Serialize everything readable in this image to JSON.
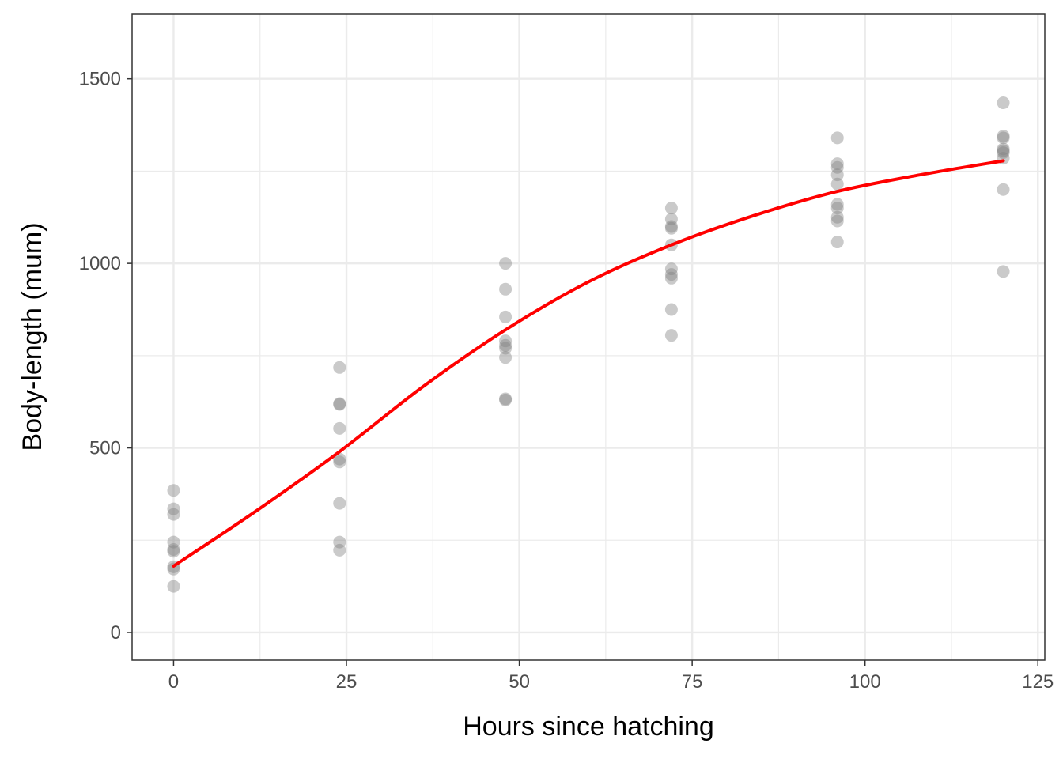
{
  "chart_data": {
    "type": "scatter",
    "title": "",
    "xlabel": "Hours since hatching",
    "ylabel": "Body-length (mum)",
    "xlim": [
      -6,
      126
    ],
    "ylim": [
      -75,
      1675
    ],
    "x_ticks": [
      0,
      25,
      50,
      75,
      100,
      125
    ],
    "y_ticks": [
      0,
      500,
      1000,
      1500
    ],
    "x_tick_labels": [
      "0",
      "25",
      "50",
      "75",
      "100",
      "125"
    ],
    "y_tick_labels": [
      "0",
      "500",
      "1000",
      "1500"
    ],
    "grid": true,
    "legend": "none",
    "colors": {
      "points": "#808080",
      "fit_line": "#ff0000",
      "grid": "#ebebeb",
      "panel_border": "#333333"
    },
    "series": [
      {
        "kind": "points",
        "points": [
          [
            0,
            385
          ],
          [
            0,
            335
          ],
          [
            0,
            320
          ],
          [
            0,
            245
          ],
          [
            0,
            225
          ],
          [
            0,
            220
          ],
          [
            0,
            178
          ],
          [
            0,
            172
          ],
          [
            0,
            125
          ],
          [
            24,
            718
          ],
          [
            24,
            620
          ],
          [
            24,
            618
          ],
          [
            24,
            553
          ],
          [
            24,
            470
          ],
          [
            24,
            462
          ],
          [
            24,
            350
          ],
          [
            24,
            245
          ],
          [
            24,
            223
          ],
          [
            48,
            1000
          ],
          [
            48,
            930
          ],
          [
            48,
            855
          ],
          [
            48,
            790
          ],
          [
            48,
            778
          ],
          [
            48,
            770
          ],
          [
            48,
            745
          ],
          [
            48,
            633
          ],
          [
            48,
            630
          ],
          [
            72,
            1150
          ],
          [
            72,
            1120
          ],
          [
            72,
            1100
          ],
          [
            72,
            1095
          ],
          [
            72,
            1050
          ],
          [
            72,
            985
          ],
          [
            72,
            970
          ],
          [
            72,
            960
          ],
          [
            72,
            875
          ],
          [
            72,
            805
          ],
          [
            96,
            1340
          ],
          [
            96,
            1270
          ],
          [
            96,
            1260
          ],
          [
            96,
            1240
          ],
          [
            96,
            1215
          ],
          [
            96,
            1160
          ],
          [
            96,
            1150
          ],
          [
            96,
            1125
          ],
          [
            96,
            1115
          ],
          [
            96,
            1058
          ],
          [
            120,
            1435
          ],
          [
            120,
            1345
          ],
          [
            120,
            1340
          ],
          [
            120,
            1310
          ],
          [
            120,
            1305
          ],
          [
            120,
            1300
          ],
          [
            120,
            1285
          ],
          [
            120,
            1200
          ],
          [
            120,
            978
          ]
        ]
      },
      {
        "kind": "fit_line",
        "points": [
          [
            0,
            180
          ],
          [
            12,
            330
          ],
          [
            24,
            490
          ],
          [
            36,
            665
          ],
          [
            48,
            820
          ],
          [
            60,
            950
          ],
          [
            72,
            1050
          ],
          [
            84,
            1130
          ],
          [
            96,
            1195
          ],
          [
            108,
            1240
          ],
          [
            120,
            1278
          ]
        ]
      }
    ]
  }
}
